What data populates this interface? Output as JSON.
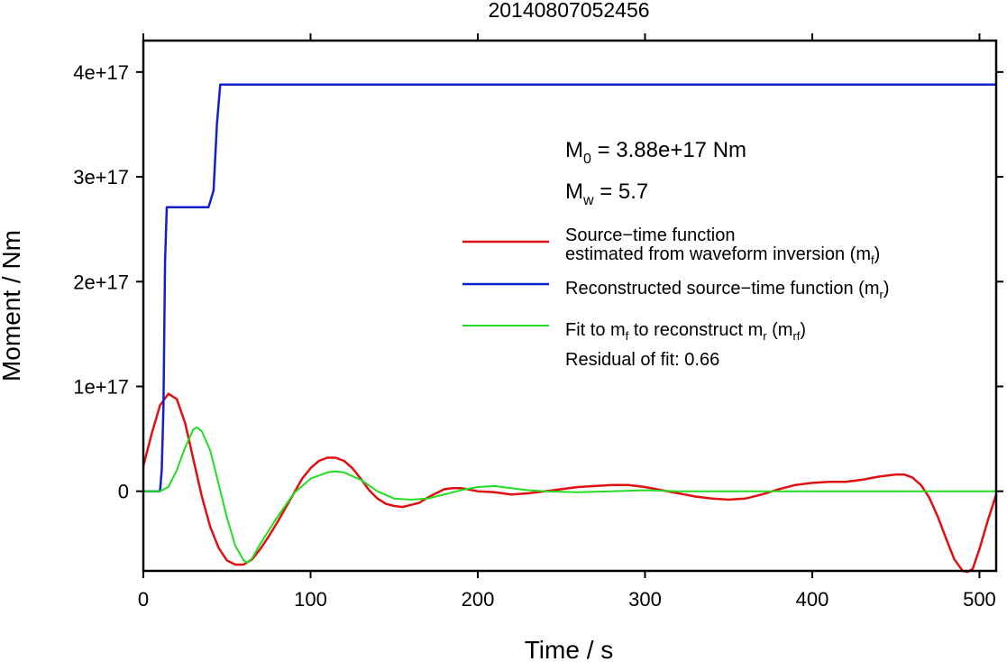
{
  "chart_data": {
    "type": "line",
    "title": "20140807052456",
    "xlabel": "Time / s",
    "ylabel": "Moment / Nm",
    "xlim": [
      0,
      510
    ],
    "ylim": [
      -7.6e+16,
      4.3e+17
    ],
    "x_ticks": [
      0,
      100,
      200,
      300,
      400,
      500
    ],
    "x_tick_labels": [
      "0",
      "100",
      "200",
      "300",
      "400",
      "500"
    ],
    "y_ticks": [
      0,
      1e+17,
      2e+17,
      3e+17,
      4e+17
    ],
    "y_tick_labels": [
      "0",
      "1e+17",
      "2e+17",
      "3e+17",
      "4e+17"
    ],
    "grid": false,
    "legend_position": "right",
    "annotations": {
      "m0": {
        "label": "M",
        "sub": "0",
        "rest": " = 3.88e+17 Nm"
      },
      "mw": {
        "label": "M",
        "sub": "w",
        "rest": " = 5.7"
      },
      "residual": "Residual of fit: 0.66"
    },
    "series": [
      {
        "key": "mf",
        "legend": {
          "line1": "Source−time function",
          "line2_pre": "estimated from waveform inversion (m",
          "line2_sub": "f",
          "line2_post": ")"
        },
        "color": "#e01010",
        "width": 2.5,
        "points": [
          [
            0,
            2.4e+16
          ],
          [
            5,
            5.5e+16
          ],
          [
            10,
            8.2e+16
          ],
          [
            15,
            9.3e+16
          ],
          [
            20,
            8.8e+16
          ],
          [
            25,
            6.5e+16
          ],
          [
            30,
            3e+16
          ],
          [
            35,
            -5000000000000000.0
          ],
          [
            40,
            -3.4e+16
          ],
          [
            45,
            -5.4e+16
          ],
          [
            50,
            -6.6e+16
          ],
          [
            55,
            -7e+16
          ],
          [
            60,
            -7e+16
          ],
          [
            65,
            -6.5e+16
          ],
          [
            70,
            -5.5e+16
          ],
          [
            75,
            -4.3e+16
          ],
          [
            80,
            -3e+16
          ],
          [
            85,
            -1.6e+16
          ],
          [
            90,
            -2000000000000000.0
          ],
          [
            95,
            1.2e+16
          ],
          [
            100,
            2.2e+16
          ],
          [
            105,
            2.9e+16
          ],
          [
            110,
            3.2e+16
          ],
          [
            115,
            3.2e+16
          ],
          [
            120,
            2.9e+16
          ],
          [
            125,
            2.2e+16
          ],
          [
            130,
            1.2e+16
          ],
          [
            135,
            1000000000000000.0
          ],
          [
            140,
            -7000000000000000.0
          ],
          [
            145,
            -1.2e+16
          ],
          [
            150,
            -1.4e+16
          ],
          [
            155,
            -1.5e+16
          ],
          [
            160,
            -1.3e+16
          ],
          [
            165,
            -1.1e+16
          ],
          [
            170,
            -6000000000000000.0
          ],
          [
            175,
            -2000000000000000.0
          ],
          [
            180,
            2000000000000000.0
          ],
          [
            185,
            3000000000000000.0
          ],
          [
            190,
            3000000000000000.0
          ],
          [
            200,
            0
          ],
          [
            210,
            -1000000000000000.0
          ],
          [
            220,
            -3000000000000000.0
          ],
          [
            230,
            -2000000000000000.0
          ],
          [
            240,
            0
          ],
          [
            250,
            2000000000000000.0
          ],
          [
            260,
            4000000000000000.0
          ],
          [
            270,
            5000000000000000.0
          ],
          [
            280,
            6000000000000000.0
          ],
          [
            290,
            6000000000000000.0
          ],
          [
            300,
            4000000000000000.0
          ],
          [
            310,
            1000000000000000.0
          ],
          [
            320,
            -2000000000000000.0
          ],
          [
            330,
            -5000000000000000.0
          ],
          [
            340,
            -7000000000000000.0
          ],
          [
            350,
            -8000000000000000.0
          ],
          [
            360,
            -7000000000000000.0
          ],
          [
            370,
            -3000000000000000.0
          ],
          [
            380,
            2000000000000000.0
          ],
          [
            390,
            6000000000000000.0
          ],
          [
            400,
            8000000000000000.0
          ],
          [
            410,
            9000000000000000.0
          ],
          [
            420,
            9000000000000000.0
          ],
          [
            430,
            1.1e+16
          ],
          [
            440,
            1.4e+16
          ],
          [
            450,
            1.6e+16
          ],
          [
            455,
            1.6e+16
          ],
          [
            460,
            1.3e+16
          ],
          [
            465,
            6000000000000000.0
          ],
          [
            470,
            -6000000000000000.0
          ],
          [
            475,
            -2.4e+16
          ],
          [
            480,
            -4.5e+16
          ],
          [
            485,
            -6.5e+16
          ],
          [
            490,
            -7.6e+16
          ],
          [
            493,
            -7.7e+16
          ],
          [
            496,
            -7.4e+16
          ],
          [
            500,
            -5.5e+16
          ],
          [
            505,
            -2.8e+16
          ],
          [
            510,
            -3000000000000000.0
          ]
        ]
      },
      {
        "key": "mr",
        "legend": {
          "line1": "",
          "line2_pre": "Reconstructed source−time function (m",
          "line2_sub": "r",
          "line2_post": ")"
        },
        "color": "#1020d0",
        "width": 2.5,
        "points": [
          [
            0,
            0
          ],
          [
            10,
            0
          ],
          [
            11,
            2e+16
          ],
          [
            12,
            8e+16
          ],
          [
            13,
            2.2e+17
          ],
          [
            14,
            2.71e+17
          ],
          [
            39,
            2.71e+17
          ],
          [
            42,
            2.87e+17
          ],
          [
            44,
            3.5e+17
          ],
          [
            46,
            3.88e+17
          ],
          [
            510,
            3.88e+17
          ]
        ]
      },
      {
        "key": "mrf",
        "legend": {
          "line1": "",
          "line2_pre": "Fit to m",
          "line2_sub": "f",
          "line2_mid": " to reconstruct m",
          "line2_sub2": "r",
          "line2_mid2": " (m",
          "line2_sub3": "rf",
          "line2_post": ")"
        },
        "color": "#22dd22",
        "width": 2,
        "points": [
          [
            0,
            0
          ],
          [
            10,
            0
          ],
          [
            15,
            4000000000000000.0
          ],
          [
            20,
            2e+16
          ],
          [
            25,
            4.2e+16
          ],
          [
            30,
            5.9e+16
          ],
          [
            32,
            6.1e+16
          ],
          [
            35,
            5.7e+16
          ],
          [
            40,
            3.9e+16
          ],
          [
            45,
            7000000000000000.0
          ],
          [
            50,
            -2.5e+16
          ],
          [
            55,
            -5.2e+16
          ],
          [
            60,
            -6.6e+16
          ],
          [
            62,
            -6.8e+16
          ],
          [
            65,
            -6.4e+16
          ],
          [
            70,
            -5e+16
          ],
          [
            80,
            -2.5e+16
          ],
          [
            90,
            -2000000000000000.0
          ],
          [
            100,
            1.2e+16
          ],
          [
            110,
            1.8e+16
          ],
          [
            115,
            1.9e+16
          ],
          [
            120,
            1.8e+16
          ],
          [
            130,
            1.1e+16
          ],
          [
            140,
            0
          ],
          [
            150,
            -7000000000000000.0
          ],
          [
            160,
            -8000000000000000.0
          ],
          [
            170,
            -7000000000000000.0
          ],
          [
            180,
            -3000000000000000.0
          ],
          [
            190,
            1000000000000000.0
          ],
          [
            200,
            4000000000000000.0
          ],
          [
            210,
            5000000000000000.0
          ],
          [
            220,
            3000000000000000.0
          ],
          [
            230,
            1000000000000000.0
          ],
          [
            240,
            0
          ],
          [
            260,
            -1000000000000000.0
          ],
          [
            280,
            0
          ],
          [
            300,
            1000000000000000.0
          ],
          [
            320,
            0
          ],
          [
            360,
            0
          ],
          [
            510,
            0
          ]
        ]
      }
    ]
  }
}
